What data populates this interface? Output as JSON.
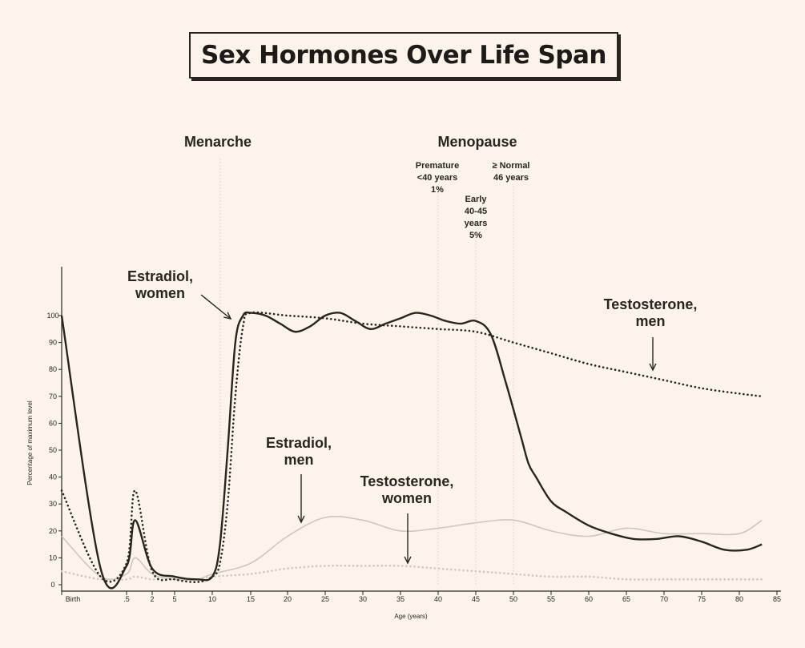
{
  "chart_data": {
    "type": "line",
    "title": "Sex Hormones Over Life Span",
    "xlabel": "Age (years)",
    "ylabel": "Percentage of maximum level",
    "ylim": [
      0,
      100
    ],
    "x_tick_labels": [
      "Birth",
      ".5",
      "2",
      "5",
      "10",
      "15",
      "20",
      "25",
      "30",
      "35",
      "40",
      "45",
      "50",
      "55",
      "60",
      "65",
      "70",
      "75",
      "80",
      "85"
    ],
    "y_ticks": [
      0,
      10,
      20,
      30,
      40,
      50,
      60,
      70,
      80,
      90,
      100
    ],
    "series": [
      {
        "name": "Estradiol, women",
        "style": "solid-dark",
        "x": [
          "Birth",
          0.3,
          0.5,
          1,
          2,
          5,
          8,
          10,
          11,
          12,
          13,
          14,
          15,
          17,
          19,
          21,
          23,
          25,
          27,
          29,
          31,
          33,
          35,
          37,
          39,
          41,
          43,
          45,
          47,
          49,
          51,
          52,
          53,
          55,
          57,
          60,
          63,
          66,
          69,
          72,
          75,
          78,
          81,
          83
        ],
        "values": [
          100,
          6,
          7,
          24,
          6,
          3,
          2,
          3,
          15,
          50,
          90,
          100,
          101,
          100,
          97,
          94,
          96,
          100,
          101,
          98,
          95,
          97,
          99,
          101,
          100,
          98,
          97,
          98,
          93,
          75,
          55,
          45,
          40,
          31,
          27,
          22,
          19,
          17,
          17,
          18,
          16,
          13,
          13,
          15
        ]
      },
      {
        "name": "Testosterone, men",
        "style": "dotted-dark",
        "x": [
          "Birth",
          0.3,
          0.5,
          1,
          2,
          5,
          8,
          10,
          11,
          12,
          13,
          14,
          15,
          20,
          25,
          30,
          35,
          40,
          45,
          50,
          55,
          60,
          65,
          70,
          75,
          80,
          83
        ],
        "values": [
          35,
          3,
          8,
          35,
          5,
          2,
          1,
          3,
          8,
          30,
          70,
          96,
          101,
          100,
          99,
          97,
          96,
          95,
          94,
          90,
          86,
          82,
          79,
          76,
          73,
          71,
          70
        ]
      },
      {
        "name": "Estradiol, men",
        "style": "solid-light",
        "x": [
          "Birth",
          0.3,
          0.5,
          1,
          2,
          5,
          8,
          10,
          15,
          20,
          25,
          30,
          35,
          40,
          45,
          50,
          55,
          60,
          65,
          70,
          75,
          80,
          83
        ],
        "values": [
          18,
          3,
          4,
          10,
          4,
          2,
          2,
          4,
          8,
          18,
          25,
          24,
          20,
          21,
          23,
          24,
          20,
          18,
          21,
          19,
          19,
          19,
          24
        ]
      },
      {
        "name": "Testosterone, women",
        "style": "dotted-light",
        "x": [
          "Birth",
          0.3,
          0.5,
          1,
          2,
          5,
          8,
          10,
          15,
          20,
          25,
          30,
          35,
          40,
          45,
          50,
          55,
          60,
          65,
          70,
          75,
          80,
          83
        ],
        "values": [
          5,
          2,
          2,
          3,
          2,
          2,
          2,
          3,
          4,
          6,
          7,
          7,
          7,
          6,
          5,
          4,
          3,
          3,
          2,
          2,
          2,
          2,
          2
        ]
      }
    ],
    "annotations": {
      "menarche": "Menarche",
      "menopause": "Menopause",
      "premature": [
        "Premature",
        "<40 years",
        "1%"
      ],
      "normal": [
        "≥ Normal",
        "46 years"
      ],
      "early": [
        "Early",
        "40-45",
        "years",
        "5%"
      ],
      "estradiol_women": [
        "Estradiol,",
        "women"
      ],
      "testosterone_men": [
        "Testosterone,",
        "men"
      ],
      "estradiol_men": [
        "Estradiol,",
        "men"
      ],
      "testosterone_women": [
        "Testosterone,",
        "women"
      ]
    },
    "reference_lines": [
      {
        "name": "Menarche",
        "x": 12
      },
      {
        "name": "Premature menopause",
        "x": 40
      },
      {
        "name": "Early menopause",
        "x": 45
      },
      {
        "name": "Normal menopause",
        "x": 50
      }
    ],
    "grid": false,
    "colors": {
      "dark": "#2a2420",
      "light": "#cfc7bf",
      "background": "#fcf4ea"
    }
  }
}
